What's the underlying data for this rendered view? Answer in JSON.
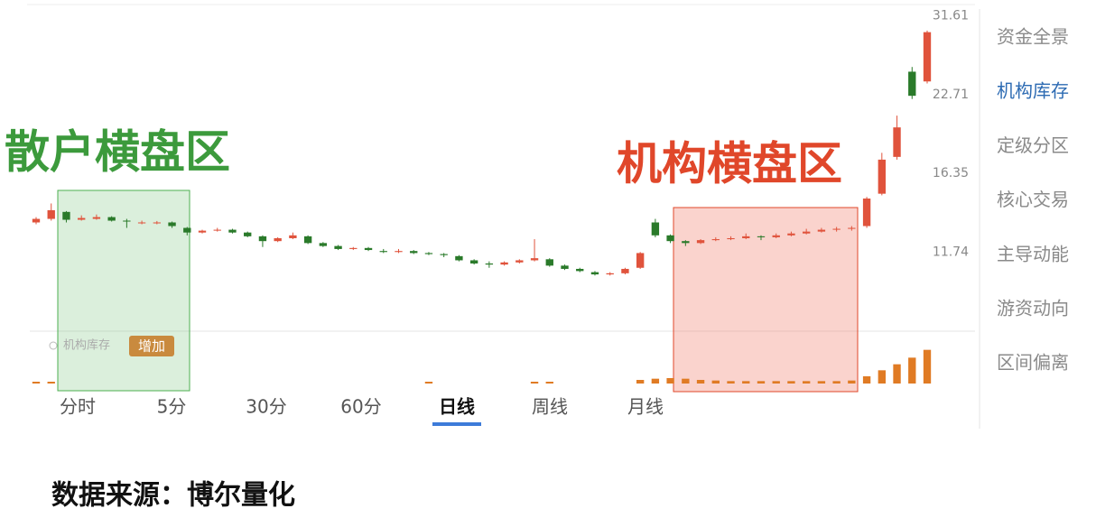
{
  "chart_data": {
    "type": "candlestick",
    "log_scale": true,
    "ylim": [
      8.5,
      32.5
    ],
    "yticks": [
      11.74,
      16.35,
      22.71,
      31.61
    ],
    "up_color": "#e0533c",
    "down_color": "#2a7a2a",
    "open": [
      13.3,
      13.5,
      13.9,
      13.45,
      13.5,
      13.6,
      13.4,
      13.28,
      13.25,
      13.3,
      13.0,
      12.75,
      12.85,
      12.9,
      12.75,
      12.55,
      12.3,
      12.45,
      12.55,
      12.2,
      12.05,
      11.9,
      11.95,
      11.8,
      11.75,
      11.8,
      11.7,
      11.65,
      11.55,
      11.35,
      11.2,
      11.15,
      11.25,
      11.35,
      11.4,
      11.1,
      10.95,
      10.8,
      10.7,
      10.75,
      11.0,
      13.3,
      12.6,
      12.3,
      12.2,
      12.35,
      12.4,
      12.45,
      12.55,
      12.5,
      12.6,
      12.7,
      12.8,
      12.9,
      12.95,
      13.1,
      15.0,
      17.5,
      25.0,
      24.0
    ],
    "high": [
      13.6,
      14.4,
      13.95,
      13.7,
      13.75,
      13.65,
      13.5,
      13.4,
      13.38,
      13.35,
      13.05,
      12.9,
      13.0,
      12.95,
      12.8,
      12.6,
      12.5,
      12.75,
      12.6,
      12.25,
      12.1,
      12.0,
      12.0,
      11.9,
      11.9,
      11.85,
      11.75,
      11.7,
      11.6,
      11.4,
      11.3,
      11.3,
      11.4,
      12.4,
      11.45,
      11.15,
      11.0,
      10.85,
      10.8,
      11.0,
      11.75,
      13.5,
      12.65,
      12.35,
      12.4,
      12.5,
      12.55,
      12.7,
      12.6,
      12.7,
      12.8,
      12.95,
      13.0,
      13.05,
      13.1,
      14.8,
      17.8,
      20.8,
      25.5,
      29.7
    ],
    "low": [
      13.2,
      13.4,
      13.3,
      13.4,
      13.45,
      13.35,
      13.0,
      13.2,
      13.2,
      13.0,
      12.6,
      12.7,
      12.8,
      12.7,
      12.5,
      12.0,
      12.25,
      12.4,
      12.15,
      12.0,
      11.85,
      11.85,
      11.8,
      11.7,
      11.7,
      11.65,
      11.6,
      11.5,
      11.3,
      11.15,
      11.0,
      11.1,
      11.2,
      11.3,
      11.05,
      10.9,
      10.8,
      10.65,
      10.65,
      10.7,
      10.95,
      12.5,
      12.2,
      12.05,
      12.15,
      12.3,
      12.35,
      12.4,
      12.35,
      12.45,
      12.55,
      12.65,
      12.75,
      12.8,
      12.85,
      13.0,
      14.9,
      17.3,
      22.3,
      23.8
    ],
    "close": [
      13.5,
      14.0,
      13.45,
      13.55,
      13.6,
      13.4,
      13.35,
      13.3,
      13.3,
      13.1,
      12.75,
      12.85,
      12.9,
      12.75,
      12.55,
      12.3,
      12.45,
      12.6,
      12.2,
      12.05,
      11.9,
      11.95,
      11.85,
      11.75,
      11.8,
      11.7,
      11.65,
      11.6,
      11.35,
      11.2,
      11.15,
      11.25,
      11.35,
      11.45,
      11.1,
      10.95,
      10.85,
      10.7,
      10.75,
      10.95,
      11.7,
      12.6,
      12.3,
      12.2,
      12.35,
      12.4,
      12.45,
      12.55,
      12.5,
      12.6,
      12.7,
      12.8,
      12.9,
      12.95,
      13.0,
      14.7,
      17.3,
      19.8,
      22.6,
      29.5
    ],
    "indicator": {
      "name": "机构库存",
      "color": "#e07b24",
      "y2lim": [
        0,
        6
      ],
      "values": [
        0.3,
        0.3,
        0,
        0,
        0,
        0,
        0,
        0,
        0,
        0,
        0,
        0,
        0,
        0,
        0,
        0,
        0,
        0,
        0,
        0,
        0,
        0,
        0,
        0,
        0,
        0,
        0.3,
        0,
        0,
        0,
        0,
        0,
        0,
        0.3,
        0.3,
        0,
        0,
        0,
        0,
        0,
        0.6,
        0.8,
        0.9,
        0.8,
        0.6,
        0.5,
        0.4,
        0.4,
        0.4,
        0.4,
        0.4,
        0.4,
        0.4,
        0.4,
        0.5,
        1.2,
        2.2,
        3.2,
        4.3,
        5.6
      ]
    },
    "annotations": [
      "散户横盘区",
      "机构横盘区"
    ]
  },
  "ui": {
    "sidebar": {
      "items": [
        "资金全景",
        "机构库存",
        "定级分区",
        "核心交易",
        "主导动能",
        "游资动向",
        "区间偏离"
      ],
      "active": 1
    },
    "tabs": {
      "items": [
        "分时",
        "5分",
        "30分",
        "60分",
        "日线",
        "周线",
        "月线"
      ],
      "active": 4
    },
    "add_button": "增加",
    "source": "数据来源：博尔量化"
  }
}
